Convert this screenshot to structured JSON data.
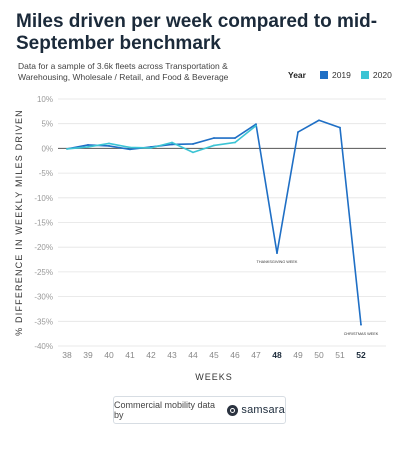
{
  "chart_data": {
    "type": "line",
    "title": "Miles driven per week compared to mid-September benchmark",
    "subtitle": "Data for a sample of 3.6k fleets across Transportation & Warehousing, Wholesale / Retail, and Food & Beverage",
    "xlabel": "WEEKS",
    "ylabel": "% DIFFERENCE IN WEEKLY MILES DRIVEN",
    "legend_title": "Year",
    "legend_position": "top-right",
    "categories": [
      "38",
      "39",
      "40",
      "41",
      "42",
      "43",
      "44",
      "45",
      "46",
      "47",
      "48",
      "49",
      "50",
      "51",
      "52"
    ],
    "bold_ticks": [
      "48",
      "52"
    ],
    "ylim": [
      -40,
      10
    ],
    "yticks": [
      10,
      5,
      0,
      -5,
      -10,
      -15,
      -20,
      -25,
      -30,
      -35,
      -40
    ],
    "ytick_labels": [
      "10%",
      "5%",
      "0%",
      "-5%",
      "-10%",
      "-15%",
      "-20%",
      "-25%",
      "-30%",
      "-35%",
      "-40%"
    ],
    "grid": true,
    "series": [
      {
        "name": "2019",
        "color": "#1f6fc5",
        "values": [
          -0.1,
          0.7,
          0.5,
          -0.2,
          0.3,
          0.8,
          0.9,
          2.1,
          2.1,
          4.9,
          -21.2,
          3.3,
          5.7,
          4.2,
          -35.7
        ]
      },
      {
        "name": "2020",
        "color": "#3cc4d4",
        "values": [
          -0.1,
          0.3,
          1.0,
          0.2,
          0.1,
          1.2,
          -0.8,
          0.6,
          1.2,
          4.6,
          null,
          null,
          null,
          null,
          null
        ]
      }
    ],
    "annotations": [
      {
        "x": "48",
        "y": -21.2,
        "text": "THANKSGIVING WEEK"
      },
      {
        "x": "52",
        "y": -35.7,
        "text": "CHRISTMAS WEEK"
      }
    ]
  },
  "footer": {
    "text": "Commercial mobility data by",
    "brand": "samsara"
  }
}
